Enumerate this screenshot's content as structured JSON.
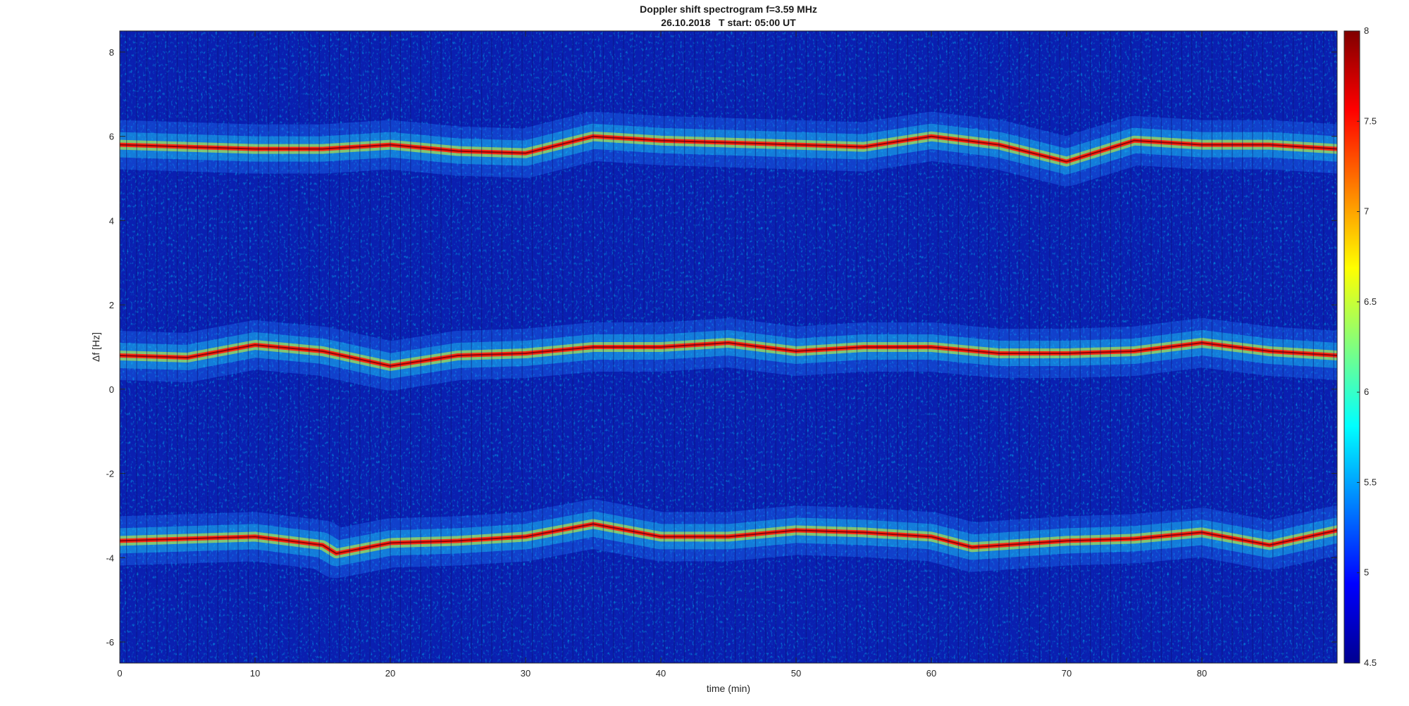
{
  "chart_data": {
    "type": "heatmap",
    "title": "Doppler shift spectrogram f=3.59 MHz",
    "subtitle": "26.10.2018   T start: 05:00 UT",
    "xlabel": "time (min)",
    "ylabel": "Δf [Hz]",
    "xlim": [
      0,
      90
    ],
    "ylim": [
      -6.5,
      8.5
    ],
    "x_ticks": [
      0,
      10,
      20,
      30,
      40,
      50,
      60,
      70,
      80
    ],
    "y_ticks": [
      8,
      6,
      4,
      2,
      0,
      -2,
      -4,
      -6
    ],
    "colorbar": {
      "min": 4.5,
      "max": 8,
      "ticks": [
        8,
        7.5,
        7,
        6.5,
        6,
        5.5,
        5,
        4.5
      ],
      "colormap": "jet"
    },
    "grid": false,
    "series": [
      {
        "x": [
          0,
          5,
          10,
          15,
          20,
          25,
          30,
          35,
          40,
          45,
          50,
          55,
          60,
          65,
          70,
          72,
          75,
          80,
          85,
          90
        ],
        "values": [
          5.8,
          5.75,
          5.7,
          5.7,
          5.8,
          5.65,
          5.6,
          6.0,
          5.9,
          5.85,
          5.8,
          5.75,
          6.0,
          5.8,
          5.4,
          5.6,
          5.9,
          5.8,
          5.8,
          5.7
        ]
      },
      {
        "x": [
          0,
          5,
          10,
          15,
          20,
          25,
          30,
          35,
          40,
          45,
          50,
          55,
          60,
          65,
          70,
          75,
          80,
          85,
          90
        ],
        "values": [
          0.8,
          0.75,
          1.05,
          0.9,
          0.55,
          0.8,
          0.85,
          1.0,
          1.0,
          1.1,
          0.9,
          1.0,
          1.0,
          0.85,
          0.85,
          0.9,
          1.1,
          0.9,
          0.8
        ]
      },
      {
        "x": [
          0,
          5,
          10,
          15,
          16,
          20,
          25,
          30,
          35,
          40,
          45,
          50,
          55,
          60,
          63,
          70,
          75,
          80,
          85,
          90
        ],
        "values": [
          -3.6,
          -3.55,
          -3.5,
          -3.7,
          -3.9,
          -3.65,
          -3.6,
          -3.5,
          -3.2,
          -3.5,
          -3.5,
          -3.35,
          -3.4,
          -3.5,
          -3.75,
          -3.6,
          -3.55,
          -3.4,
          -3.7,
          -3.35
        ]
      }
    ]
  }
}
